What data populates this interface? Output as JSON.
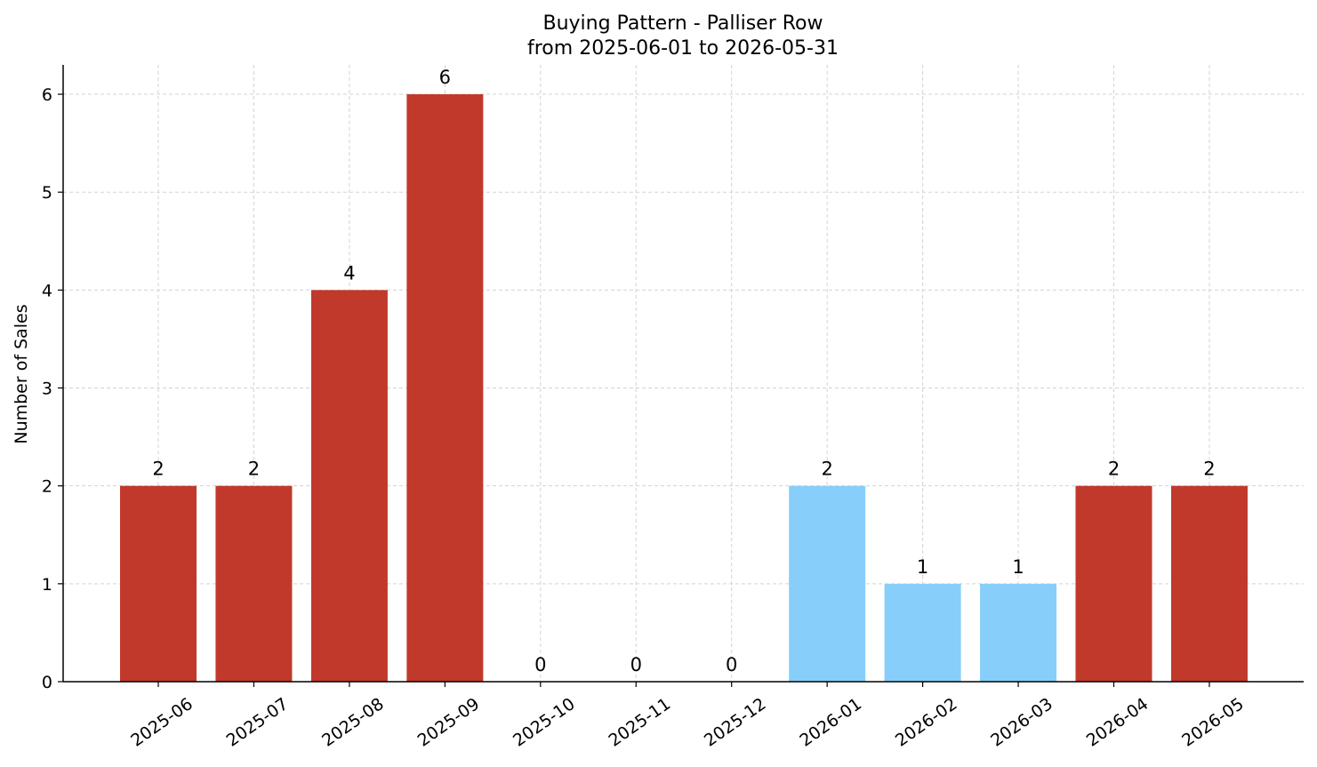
{
  "chart_data": {
    "type": "bar",
    "title": "Buying Pattern - Palliser Row",
    "subtitle": "from 2025-06-01 to 2026-05-31",
    "xlabel": "",
    "ylabel": "Number of Sales",
    "categories": [
      "2025-06",
      "2025-07",
      "2025-08",
      "2025-09",
      "2025-10",
      "2025-11",
      "2025-12",
      "2026-01",
      "2026-02",
      "2026-03",
      "2026-04",
      "2026-05"
    ],
    "values": [
      2,
      2,
      4,
      6,
      0,
      0,
      0,
      2,
      1,
      1,
      2,
      2
    ],
    "bar_colors": [
      "#c0392b",
      "#c0392b",
      "#c0392b",
      "#c0392b",
      "#c0392b",
      "#c0392b",
      "#c0392b",
      "#87cefa",
      "#87cefa",
      "#87cefa",
      "#c0392b",
      "#c0392b"
    ],
    "ylim": [
      0,
      6.3
    ],
    "yticks": [
      0,
      1,
      2,
      3,
      4,
      5,
      6
    ],
    "grid": true,
    "grid_color": "#d3d3d3",
    "legend": "none"
  }
}
